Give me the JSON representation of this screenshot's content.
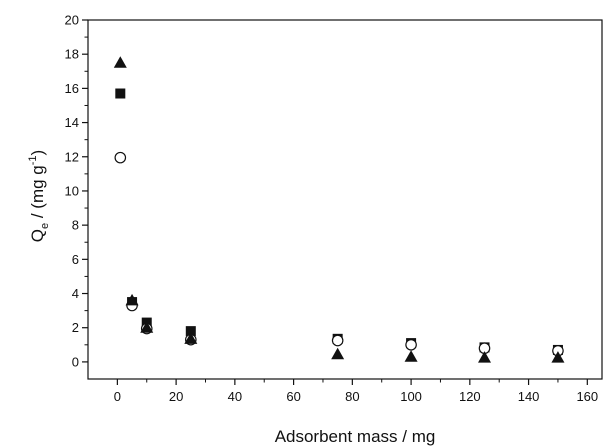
{
  "chart_data": {
    "type": "scatter",
    "title": "",
    "xlabel": "Adsorbent mass / mg",
    "ylabel": {
      "main": "Q",
      "subscript": "e",
      "mid": " / (mg g",
      "superscript": "-1",
      "end": ")"
    },
    "xlim": [
      -10,
      165
    ],
    "ylim": [
      -1,
      20
    ],
    "xticks": [
      0,
      20,
      40,
      60,
      80,
      100,
      120,
      140,
      160
    ],
    "yticks": [
      0,
      2,
      4,
      6,
      8,
      10,
      12,
      14,
      16,
      18,
      20
    ],
    "grid": false,
    "legend": "none",
    "series": [
      {
        "marker": "filled-square",
        "color": "#111111",
        "points": [
          [
            1,
            15.7
          ],
          [
            5,
            3.5
          ],
          [
            10,
            2.3
          ],
          [
            25,
            1.8
          ],
          [
            75,
            1.35
          ],
          [
            100,
            1.1
          ],
          [
            125,
            0.85
          ],
          [
            150,
            0.7
          ]
        ]
      },
      {
        "marker": "open-circle",
        "color": "#111111",
        "points": [
          [
            1,
            11.95
          ],
          [
            5,
            3.3
          ],
          [
            10,
            1.95
          ],
          [
            25,
            1.3
          ],
          [
            75,
            1.25
          ],
          [
            100,
            1.0
          ],
          [
            125,
            0.8
          ],
          [
            150,
            0.65
          ]
        ]
      },
      {
        "marker": "filled-triangle",
        "color": "#111111",
        "points": [
          [
            1,
            17.5
          ],
          [
            5,
            3.6
          ],
          [
            10,
            2.0
          ],
          [
            25,
            1.35
          ],
          [
            75,
            0.45
          ],
          [
            100,
            0.3
          ],
          [
            125,
            0.25
          ],
          [
            150,
            0.25
          ]
        ]
      }
    ]
  }
}
